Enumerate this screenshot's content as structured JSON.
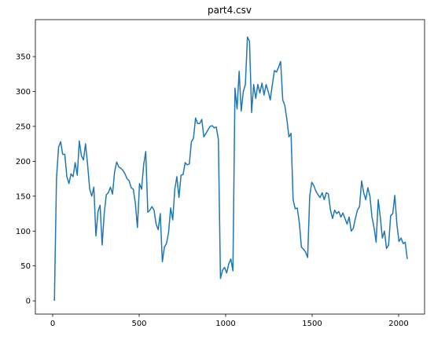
{
  "chart_data": {
    "type": "line",
    "title": "part4.csv",
    "x": [
      10,
      22,
      34,
      46,
      58,
      70,
      82,
      94,
      106,
      118,
      130,
      142,
      154,
      166,
      178,
      190,
      202,
      214,
      226,
      238,
      250,
      262,
      274,
      286,
      298,
      310,
      322,
      334,
      346,
      358,
      370,
      382,
      394,
      406,
      418,
      430,
      442,
      454,
      466,
      478,
      490,
      502,
      514,
      526,
      538,
      550,
      562,
      574,
      586,
      598,
      610,
      622,
      634,
      646,
      658,
      670,
      682,
      694,
      706,
      718,
      730,
      742,
      754,
      766,
      778,
      790,
      802,
      814,
      826,
      838,
      850,
      862,
      874,
      886,
      898,
      910,
      922,
      934,
      946,
      958,
      970,
      982,
      994,
      1006,
      1018,
      1030,
      1042,
      1054,
      1066,
      1078,
      1090,
      1102,
      1114,
      1126,
      1138,
      1150,
      1162,
      1174,
      1186,
      1198,
      1210,
      1222,
      1234,
      1246,
      1258,
      1270,
      1282,
      1294,
      1306,
      1318,
      1330,
      1342,
      1354,
      1366,
      1378,
      1390,
      1402,
      1414,
      1426,
      1438,
      1450,
      1462,
      1474,
      1486,
      1498,
      1510,
      1522,
      1534,
      1546,
      1558,
      1570,
      1582,
      1594,
      1606,
      1618,
      1630,
      1642,
      1654,
      1666,
      1678,
      1690,
      1702,
      1714,
      1726,
      1738,
      1750,
      1762,
      1774,
      1786,
      1798,
      1810,
      1822,
      1834,
      1846,
      1858,
      1870,
      1882,
      1894,
      1906,
      1918,
      1930,
      1942,
      1954,
      1966,
      1978,
      1990,
      2002,
      2014,
      2026,
      2038,
      2050
    ],
    "series": [
      {
        "color": "#1f77b4",
        "values": [
          0,
          175,
          220,
          228,
          210,
          210,
          178,
          168,
          182,
          178,
          198,
          180,
          229,
          208,
          202,
          225,
          195,
          160,
          150,
          163,
          93,
          128,
          137,
          80,
          125,
          152,
          155,
          163,
          153,
          185,
          199,
          192,
          190,
          187,
          182,
          175,
          172,
          162,
          160,
          140,
          105,
          168,
          160,
          195,
          214,
          127,
          130,
          135,
          130,
          110,
          102,
          125,
          56,
          77,
          82,
          98,
          133,
          116,
          160,
          178,
          148,
          180,
          181,
          198,
          195,
          196,
          228,
          233,
          262,
          254,
          254,
          260,
          235,
          240,
          245,
          250,
          251,
          248,
          249,
          231,
          32,
          44,
          48,
          40,
          53,
          60,
          43,
          305,
          275,
          329,
          272,
          300,
          310,
          378,
          372,
          270,
          310,
          290,
          310,
          298,
          312,
          295,
          310,
          300,
          288,
          310,
          330,
          328,
          335,
          343,
          288,
          280,
          260,
          235,
          240,
          145,
          132,
          133,
          112,
          77,
          74,
          70,
          62,
          150,
          170,
          165,
          157,
          152,
          148,
          155,
          145,
          155,
          153,
          130,
          118,
          130,
          125,
          128,
          120,
          126,
          118,
          110,
          120,
          100,
          104,
          118,
          130,
          135,
          172,
          155,
          145,
          162,
          150,
          120,
          105,
          84,
          145,
          120,
          90,
          100,
          75,
          80,
          122,
          125,
          151,
          110,
          85,
          90,
          82,
          84,
          60
        ]
      }
    ],
    "xlim": [
      -100,
      2150
    ],
    "ylim": [
      -19,
      403
    ],
    "xticks": [
      0,
      500,
      1000,
      1500,
      2000
    ],
    "yticks": [
      0,
      50,
      100,
      150,
      200,
      250,
      300,
      350
    ]
  }
}
